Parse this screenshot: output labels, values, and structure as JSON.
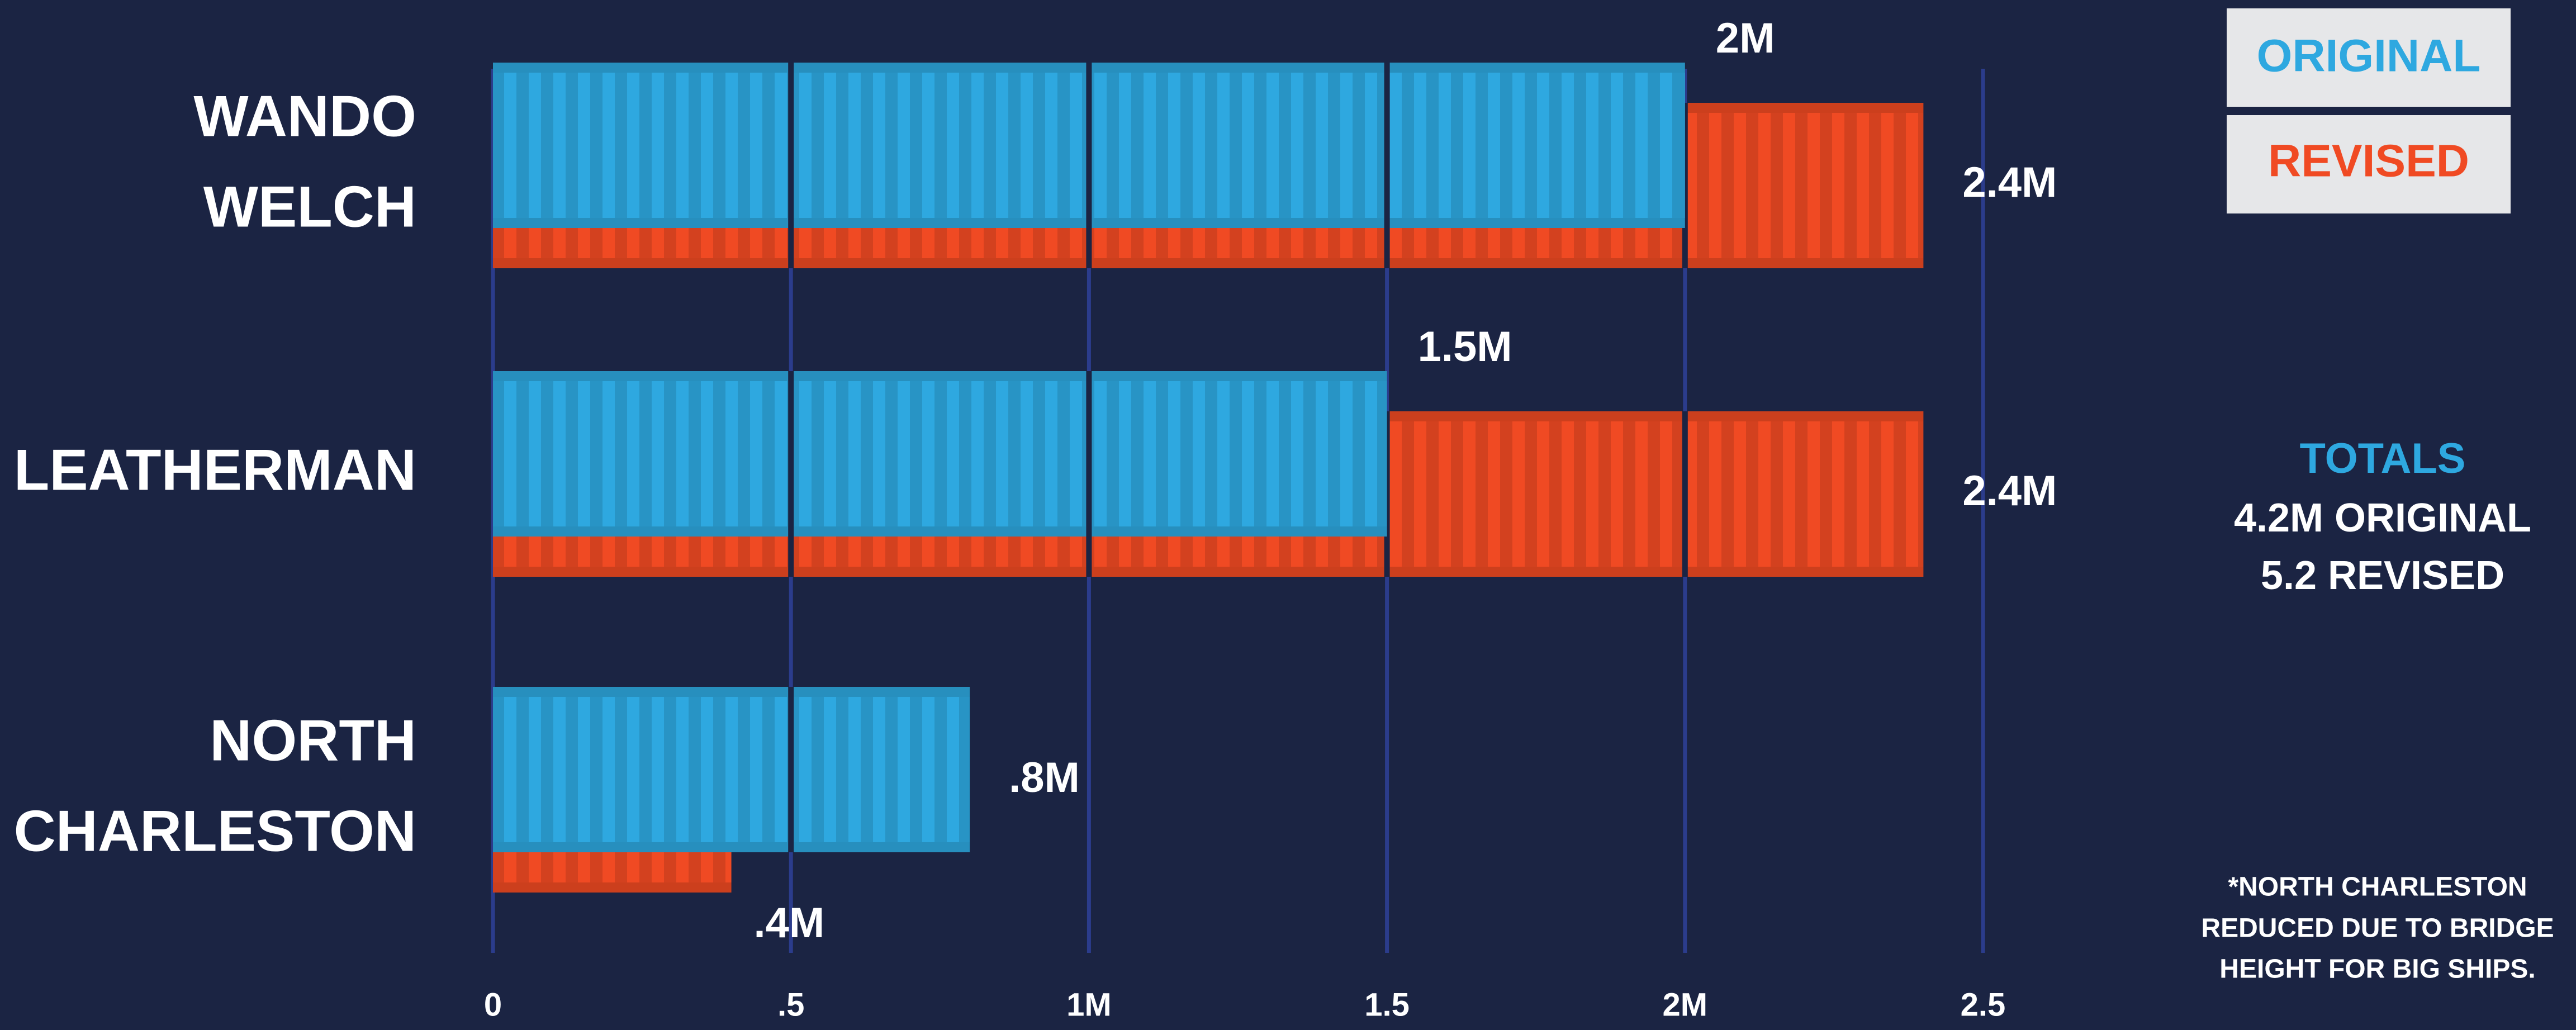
{
  "chart_data": {
    "type": "bar",
    "orientation": "horizontal",
    "categories": [
      [
        "WANDO",
        "WELCH"
      ],
      [
        "LEATHERMAN"
      ],
      [
        "NORTH",
        "CHARLESTON"
      ]
    ],
    "series": [
      {
        "name": "ORIGINAL",
        "color": "#2ea8e0",
        "values": [
          2,
          1.5,
          0.8
        ],
        "value_labels": [
          "2M",
          "1.5M",
          ".8M"
        ]
      },
      {
        "name": "REVISED",
        "color": "#f04a23",
        "values": [
          2.4,
          2.4,
          0.4
        ],
        "value_labels": [
          "2.4M",
          "2.4M",
          ".4M"
        ]
      }
    ],
    "xlim": [
      0,
      2.5
    ],
    "xticks": [
      0,
      {
        "value": 0.5,
        "label": ".5"
      },
      {
        "value": 1,
        "label": "1M"
      },
      1.5,
      {
        "value": 2,
        "label": "2M"
      },
      2.5
    ],
    "grid": true,
    "legend": "top-right",
    "totals": {
      "title": "TOTALS",
      "lines": [
        "4.2M ORIGINAL",
        "5.2 REVISED"
      ]
    },
    "footnote": [
      "*NORTH CHARLESTON",
      "REDUCED DUE TO BRIDGE",
      "HEIGHT FOR BIG SHIPS."
    ]
  }
}
